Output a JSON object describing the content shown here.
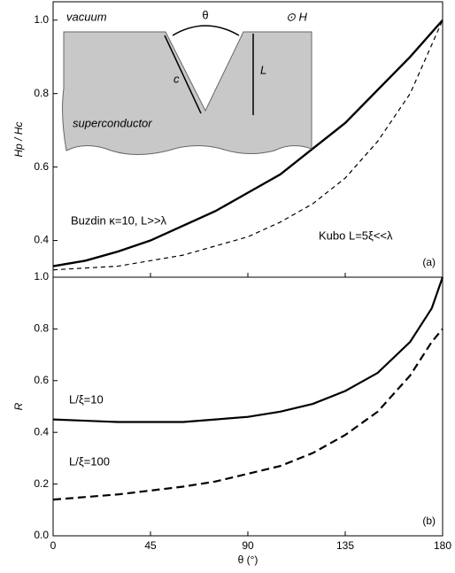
{
  "chart_data": [
    {
      "type": "line",
      "panel_label": "(a)",
      "y_label": "Hp / Hc",
      "x": [
        0,
        15,
        30,
        45,
        60,
        75,
        90,
        105,
        120,
        135,
        150,
        165,
        180
      ],
      "xlim": [
        0,
        180
      ],
      "xticks": [
        0,
        45,
        90,
        135,
        180
      ],
      "ylim": [
        0.3,
        1.05
      ],
      "yticks": [
        0.4,
        0.6,
        0.8,
        {
          "value": 1.0,
          "label": "1.0"
        }
      ],
      "series": [
        {
          "name": "Buzdin κ=10, L>>λ",
          "color": "#000000",
          "dash": false,
          "values": [
            0.33,
            0.345,
            0.37,
            0.4,
            0.44,
            0.48,
            0.53,
            0.58,
            0.65,
            0.72,
            0.81,
            0.9,
            1.0
          ]
        },
        {
          "name": "Kubo L=5ξ<<λ",
          "color": "#000000",
          "dash": true,
          "values": [
            0.32,
            0.325,
            0.33,
            0.345,
            0.36,
            0.385,
            0.41,
            0.45,
            0.5,
            0.57,
            0.67,
            0.8,
            1.0
          ]
        }
      ],
      "inset_labels": [
        "vacuum",
        "θ",
        "⊙ H",
        "c",
        "L",
        "superconductor"
      ]
    },
    {
      "type": "line",
      "panel_label": "(b)",
      "y_label": "R",
      "x_label": "θ (°)",
      "x": [
        0,
        15,
        30,
        45,
        60,
        75,
        90,
        105,
        120,
        135,
        150,
        165,
        175,
        180
      ],
      "xlim": [
        0,
        180
      ],
      "xticks": [
        0,
        45,
        90,
        135,
        180
      ],
      "ylim": [
        0,
        1
      ],
      "yticks": [
        {
          "value": 0,
          "label": "0.0"
        },
        0.2,
        0.4,
        0.6,
        0.8,
        {
          "value": 1,
          "label": "1.0"
        }
      ],
      "series": [
        {
          "name": "L/ξ=10",
          "color": "#000000",
          "dash": false,
          "values": [
            0.45,
            0.445,
            0.44,
            0.44,
            0.44,
            0.45,
            0.46,
            0.48,
            0.51,
            0.56,
            0.63,
            0.75,
            0.88,
            1.0
          ]
        },
        {
          "name": "L/ξ=100",
          "color": "#000000",
          "dash": true,
          "values": [
            0.14,
            0.15,
            0.16,
            0.175,
            0.19,
            0.21,
            0.24,
            0.27,
            0.32,
            0.39,
            0.48,
            0.62,
            0.75,
            0.8
          ]
        }
      ]
    }
  ]
}
